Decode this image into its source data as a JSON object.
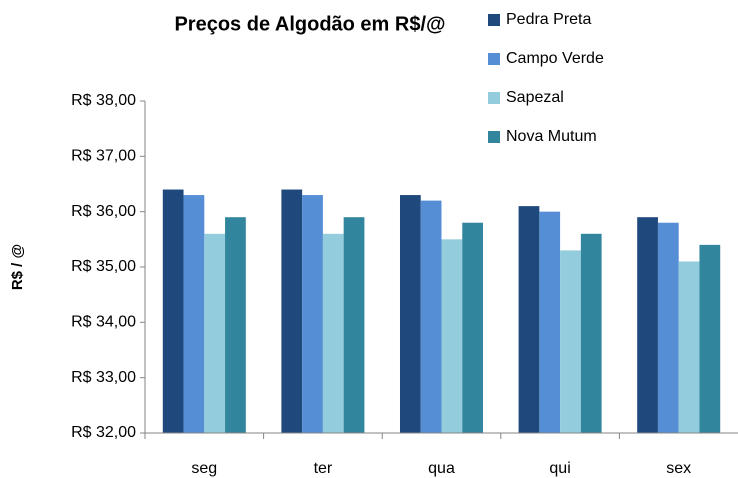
{
  "chart_data": {
    "type": "bar",
    "title": "Preços de Algodão em R$/@",
    "y_label": "R$ / @",
    "categories": [
      "seg",
      "ter",
      "qua",
      "qui",
      "sex"
    ],
    "series": [
      {
        "name": "Pedra Preta",
        "color": "#1f497d",
        "values": [
          36.4,
          36.4,
          36.3,
          36.1,
          35.9
        ]
      },
      {
        "name": "Campo Verde",
        "color": "#558ed5",
        "values": [
          36.3,
          36.3,
          36.2,
          36.0,
          35.8
        ]
      },
      {
        "name": "Sapezal",
        "color": "#93cddd",
        "values": [
          35.6,
          35.6,
          35.5,
          35.3,
          35.1
        ]
      },
      {
        "name": "Nova Mutum",
        "color": "#31859c",
        "values": [
          35.9,
          35.9,
          35.8,
          35.6,
          35.4
        ]
      }
    ],
    "ylim": [
      32,
      38
    ],
    "yticks": [
      {
        "value": 32,
        "label": "R$ 32,00"
      },
      {
        "value": 33,
        "label": "R$ 33,00"
      },
      {
        "value": 34,
        "label": "R$ 34,00"
      },
      {
        "value": 35,
        "label": "R$ 35,00"
      },
      {
        "value": 36,
        "label": "R$ 36,00"
      },
      {
        "value": 37,
        "label": "R$ 37,00"
      },
      {
        "value": 38,
        "label": "R$ 38,00"
      }
    ],
    "grid": false,
    "legend": "top-right"
  }
}
